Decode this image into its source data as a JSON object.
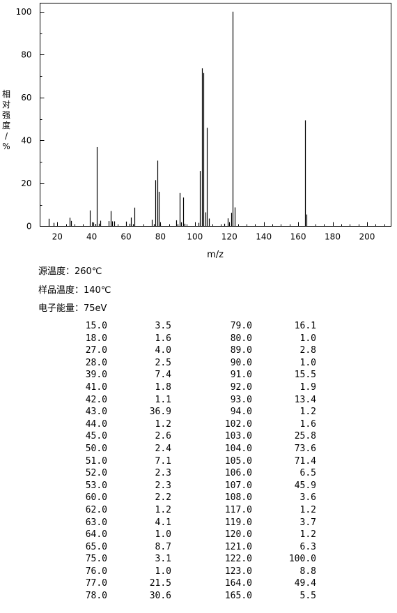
{
  "chart_data": {
    "type": "bar",
    "xlabel": "m/z",
    "ylabel": "相对强度/%",
    "xlim": [
      10,
      214
    ],
    "ylim": [
      0,
      104
    ],
    "x_ticks": [
      "20",
      "40",
      "60",
      "80",
      "100",
      "120",
      "140",
      "160",
      "180",
      "200"
    ],
    "y_ticks": [
      "0",
      "20",
      "40",
      "60",
      "80",
      "100"
    ],
    "grid": false,
    "peaks": [
      {
        "x": 15,
        "y": 3.5
      },
      {
        "x": 18,
        "y": 1.6
      },
      {
        "x": 27,
        "y": 4.0
      },
      {
        "x": 28,
        "y": 2.5
      },
      {
        "x": 39,
        "y": 7.4
      },
      {
        "x": 41,
        "y": 1.8
      },
      {
        "x": 42,
        "y": 1.1
      },
      {
        "x": 43,
        "y": 36.9
      },
      {
        "x": 44,
        "y": 1.2
      },
      {
        "x": 45,
        "y": 2.6
      },
      {
        "x": 50,
        "y": 2.4
      },
      {
        "x": 51,
        "y": 7.1
      },
      {
        "x": 52,
        "y": 2.3
      },
      {
        "x": 53,
        "y": 2.3
      },
      {
        "x": 60,
        "y": 2.2
      },
      {
        "x": 62,
        "y": 1.2
      },
      {
        "x": 63,
        "y": 4.1
      },
      {
        "x": 64,
        "y": 1.0
      },
      {
        "x": 65,
        "y": 8.7
      },
      {
        "x": 75,
        "y": 3.1
      },
      {
        "x": 76,
        "y": 1.0
      },
      {
        "x": 77,
        "y": 21.5
      },
      {
        "x": 78,
        "y": 30.6
      },
      {
        "x": 79,
        "y": 16.1
      },
      {
        "x": 80,
        "y": 1.0
      },
      {
        "x": 89,
        "y": 2.8
      },
      {
        "x": 90,
        "y": 1.0
      },
      {
        "x": 91,
        "y": 15.5
      },
      {
        "x": 92,
        "y": 1.9
      },
      {
        "x": 93,
        "y": 13.4
      },
      {
        "x": 94,
        "y": 1.2
      },
      {
        "x": 102,
        "y": 1.6
      },
      {
        "x": 103,
        "y": 25.8
      },
      {
        "x": 104,
        "y": 73.6
      },
      {
        "x": 105,
        "y": 71.4
      },
      {
        "x": 106,
        "y": 6.5
      },
      {
        "x": 107,
        "y": 45.9
      },
      {
        "x": 108,
        "y": 3.6
      },
      {
        "x": 117,
        "y": 1.2
      },
      {
        "x": 119,
        "y": 3.7
      },
      {
        "x": 120,
        "y": 1.2
      },
      {
        "x": 121,
        "y": 6.3
      },
      {
        "x": 122,
        "y": 100.0
      },
      {
        "x": 123,
        "y": 8.8
      },
      {
        "x": 164,
        "y": 49.4
      },
      {
        "x": 165,
        "y": 5.5
      }
    ]
  },
  "info": {
    "source_temp": "源温度：260℃",
    "sample_temp": "样品温度：140℃",
    "ionization_energy": "电子能量：75eV"
  },
  "table": {
    "rows": [
      [
        "15.0",
        "3.5",
        "79.0",
        "16.1"
      ],
      [
        "18.0",
        "1.6",
        "80.0",
        "1.0"
      ],
      [
        "27.0",
        "4.0",
        "89.0",
        "2.8"
      ],
      [
        "28.0",
        "2.5",
        "90.0",
        "1.0"
      ],
      [
        "39.0",
        "7.4",
        "91.0",
        "15.5"
      ],
      [
        "41.0",
        "1.8",
        "92.0",
        "1.9"
      ],
      [
        "42.0",
        "1.1",
        "93.0",
        "13.4"
      ],
      [
        "43.0",
        "36.9",
        "94.0",
        "1.2"
      ],
      [
        "44.0",
        "1.2",
        "102.0",
        "1.6"
      ],
      [
        "45.0",
        "2.6",
        "103.0",
        "25.8"
      ],
      [
        "50.0",
        "2.4",
        "104.0",
        "73.6"
      ],
      [
        "51.0",
        "7.1",
        "105.0",
        "71.4"
      ],
      [
        "52.0",
        "2.3",
        "106.0",
        "6.5"
      ],
      [
        "53.0",
        "2.3",
        "107.0",
        "45.9"
      ],
      [
        "60.0",
        "2.2",
        "108.0",
        "3.6"
      ],
      [
        "62.0",
        "1.2",
        "117.0",
        "1.2"
      ],
      [
        "63.0",
        "4.1",
        "119.0",
        "3.7"
      ],
      [
        "64.0",
        "1.0",
        "120.0",
        "1.2"
      ],
      [
        "65.0",
        "8.7",
        "121.0",
        "6.3"
      ],
      [
        "75.0",
        "3.1",
        "122.0",
        "100.0"
      ],
      [
        "76.0",
        "1.0",
        "123.0",
        "8.8"
      ],
      [
        "77.0",
        "21.5",
        "164.0",
        "49.4"
      ],
      [
        "78.0",
        "30.6",
        "165.0",
        "5.5"
      ]
    ]
  }
}
